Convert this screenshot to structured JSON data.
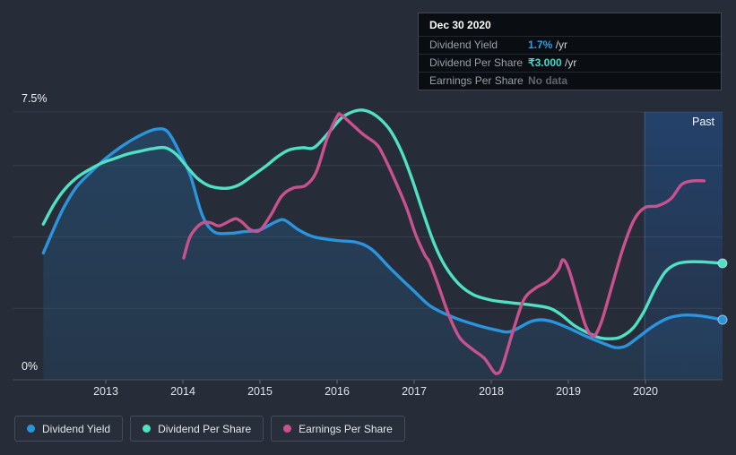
{
  "page": {
    "background": "#262c38"
  },
  "tooltip": {
    "date": "Dec 30 2020",
    "rows": [
      {
        "label": "Dividend Yield",
        "value": "1.7%",
        "suffix": " /yr",
        "value_color": "#2f9fe8"
      },
      {
        "label": "Dividend Per Share",
        "value": "₹3.000",
        "suffix": " /yr",
        "value_color": "#41d9c9"
      },
      {
        "label": "Earnings Per Share",
        "value": "No data",
        "suffix": "",
        "value_color": "#5f666e"
      }
    ]
  },
  "axis": {
    "y_max_label": "7.5%",
    "y_zero_label": "0%"
  },
  "legend": [
    {
      "label": "Dividend Yield",
      "color": "#2a94dd"
    },
    {
      "label": "Dividend Per Share",
      "color": "#50e0c4"
    },
    {
      "label": "Earnings Per Share",
      "color": "#c9518f"
    }
  ],
  "chart_data": {
    "type": "line",
    "x_axis": {
      "ticks": [
        2013,
        2014,
        2015,
        2016,
        2017,
        2018,
        2019,
        2020
      ],
      "tick_labels": [
        "2013",
        "2014",
        "2015",
        "2016",
        "2017",
        "2018",
        "2019",
        "2020"
      ],
      "range": [
        2012.19,
        2021.0
      ]
    },
    "y_axis": {
      "unit": "%",
      "min": 0,
      "max": 7.5,
      "gridlines_pct": [
        7.5,
        6,
        4,
        2,
        0
      ],
      "labeled_ticks": [
        "7.5%",
        "0%"
      ],
      "grid": true
    },
    "past_band": {
      "label": "Past",
      "start_year": 2019.99,
      "end_year": 2021.0
    },
    "legend_position": "bottom-left",
    "series": [
      {
        "name": "Dividend Yield",
        "color": "#2a94dd",
        "area_fill": true,
        "end_dot": true,
        "points": [
          [
            2012.19,
            3.55
          ],
          [
            2012.3,
            4.1
          ],
          [
            2012.45,
            4.8
          ],
          [
            2012.62,
            5.4
          ],
          [
            2012.8,
            5.8
          ],
          [
            2013.0,
            6.2
          ],
          [
            2013.25,
            6.6
          ],
          [
            2013.5,
            6.9
          ],
          [
            2013.66,
            7.02
          ],
          [
            2013.8,
            6.95
          ],
          [
            2013.95,
            6.4
          ],
          [
            2014.1,
            5.7
          ],
          [
            2014.25,
            4.62
          ],
          [
            2014.4,
            4.15
          ],
          [
            2014.6,
            4.1
          ],
          [
            2014.8,
            4.15
          ],
          [
            2015.0,
            4.2
          ],
          [
            2015.2,
            4.42
          ],
          [
            2015.32,
            4.47
          ],
          [
            2015.5,
            4.2
          ],
          [
            2015.7,
            4.0
          ],
          [
            2016.0,
            3.9
          ],
          [
            2016.25,
            3.85
          ],
          [
            2016.45,
            3.65
          ],
          [
            2016.7,
            3.1
          ],
          [
            2017.0,
            2.48
          ],
          [
            2017.2,
            2.08
          ],
          [
            2017.45,
            1.8
          ],
          [
            2017.75,
            1.57
          ],
          [
            2018.05,
            1.4
          ],
          [
            2018.25,
            1.35
          ],
          [
            2018.5,
            1.62
          ],
          [
            2018.65,
            1.68
          ],
          [
            2018.8,
            1.62
          ],
          [
            2019.0,
            1.45
          ],
          [
            2019.25,
            1.2
          ],
          [
            2019.5,
            0.98
          ],
          [
            2019.62,
            0.9
          ],
          [
            2019.75,
            0.95
          ],
          [
            2019.9,
            1.18
          ],
          [
            2020.1,
            1.5
          ],
          [
            2020.3,
            1.73
          ],
          [
            2020.5,
            1.81
          ],
          [
            2020.7,
            1.79
          ],
          [
            2020.9,
            1.72
          ],
          [
            2021.0,
            1.68
          ]
        ]
      },
      {
        "name": "Dividend Per Share",
        "color": "#50e0c4",
        "area_fill": false,
        "end_dot": true,
        "points": [
          [
            2012.19,
            4.36
          ],
          [
            2012.33,
            4.92
          ],
          [
            2012.47,
            5.34
          ],
          [
            2012.63,
            5.67
          ],
          [
            2012.79,
            5.89
          ],
          [
            2012.95,
            6.07
          ],
          [
            2013.12,
            6.2
          ],
          [
            2013.28,
            6.32
          ],
          [
            2013.44,
            6.4
          ],
          [
            2013.6,
            6.47
          ],
          [
            2013.77,
            6.5
          ],
          [
            2013.91,
            6.32
          ],
          [
            2014.05,
            5.97
          ],
          [
            2014.19,
            5.64
          ],
          [
            2014.33,
            5.44
          ],
          [
            2014.47,
            5.37
          ],
          [
            2014.6,
            5.37
          ],
          [
            2014.74,
            5.47
          ],
          [
            2014.92,
            5.74
          ],
          [
            2015.08,
            5.99
          ],
          [
            2015.23,
            6.25
          ],
          [
            2015.38,
            6.44
          ],
          [
            2015.55,
            6.5
          ],
          [
            2015.7,
            6.5
          ],
          [
            2015.87,
            6.87
          ],
          [
            2016.0,
            7.2
          ],
          [
            2016.1,
            7.4
          ],
          [
            2016.28,
            7.55
          ],
          [
            2016.42,
            7.5
          ],
          [
            2016.56,
            7.3
          ],
          [
            2016.7,
            6.95
          ],
          [
            2016.84,
            6.37
          ],
          [
            2016.98,
            5.57
          ],
          [
            2017.12,
            4.66
          ],
          [
            2017.26,
            3.81
          ],
          [
            2017.4,
            3.19
          ],
          [
            2017.58,
            2.68
          ],
          [
            2017.77,
            2.38
          ],
          [
            2018.0,
            2.23
          ],
          [
            2018.25,
            2.16
          ],
          [
            2018.5,
            2.1
          ],
          [
            2018.75,
            2.01
          ],
          [
            2018.9,
            1.83
          ],
          [
            2019.07,
            1.53
          ],
          [
            2019.22,
            1.35
          ],
          [
            2019.4,
            1.18
          ],
          [
            2019.55,
            1.15
          ],
          [
            2019.68,
            1.2
          ],
          [
            2019.84,
            1.45
          ],
          [
            2019.98,
            1.91
          ],
          [
            2020.12,
            2.53
          ],
          [
            2020.26,
            3.03
          ],
          [
            2020.4,
            3.24
          ],
          [
            2020.55,
            3.3
          ],
          [
            2020.75,
            3.3
          ],
          [
            2021.0,
            3.26
          ]
        ]
      },
      {
        "name": "Earnings Per Share",
        "color": "#c9518f",
        "area_fill": false,
        "end_dot": false,
        "points": [
          [
            2014.01,
            3.41
          ],
          [
            2014.09,
            3.99
          ],
          [
            2014.19,
            4.29
          ],
          [
            2014.28,
            4.41
          ],
          [
            2014.37,
            4.39
          ],
          [
            2014.47,
            4.31
          ],
          [
            2014.62,
            4.46
          ],
          [
            2014.69,
            4.51
          ],
          [
            2014.77,
            4.41
          ],
          [
            2014.88,
            4.2
          ],
          [
            2015.0,
            4.19
          ],
          [
            2015.14,
            4.61
          ],
          [
            2015.28,
            5.14
          ],
          [
            2015.43,
            5.37
          ],
          [
            2015.59,
            5.44
          ],
          [
            2015.73,
            5.82
          ],
          [
            2015.87,
            6.75
          ],
          [
            2016.0,
            7.37
          ],
          [
            2016.05,
            7.42
          ],
          [
            2016.17,
            7.2
          ],
          [
            2016.34,
            6.87
          ],
          [
            2016.5,
            6.62
          ],
          [
            2016.58,
            6.37
          ],
          [
            2016.74,
            5.64
          ],
          [
            2016.9,
            4.82
          ],
          [
            2017.02,
            4.06
          ],
          [
            2017.14,
            3.49
          ],
          [
            2017.2,
            3.29
          ],
          [
            2017.31,
            2.66
          ],
          [
            2017.45,
            1.81
          ],
          [
            2017.59,
            1.18
          ],
          [
            2017.74,
            0.88
          ],
          [
            2017.91,
            0.6
          ],
          [
            2018.03,
            0.23
          ],
          [
            2018.08,
            0.18
          ],
          [
            2018.14,
            0.35
          ],
          [
            2018.28,
            1.35
          ],
          [
            2018.42,
            2.23
          ],
          [
            2018.57,
            2.56
          ],
          [
            2018.73,
            2.76
          ],
          [
            2018.87,
            3.08
          ],
          [
            2018.93,
            3.36
          ],
          [
            2019.01,
            3.06
          ],
          [
            2019.13,
            2.18
          ],
          [
            2019.23,
            1.48
          ],
          [
            2019.33,
            1.23
          ],
          [
            2019.43,
            1.63
          ],
          [
            2019.57,
            2.66
          ],
          [
            2019.71,
            3.69
          ],
          [
            2019.85,
            4.47
          ],
          [
            2019.99,
            4.82
          ],
          [
            2020.16,
            4.87
          ],
          [
            2020.33,
            5.07
          ],
          [
            2020.47,
            5.47
          ],
          [
            2020.62,
            5.57
          ],
          [
            2020.76,
            5.57
          ]
        ]
      }
    ]
  }
}
